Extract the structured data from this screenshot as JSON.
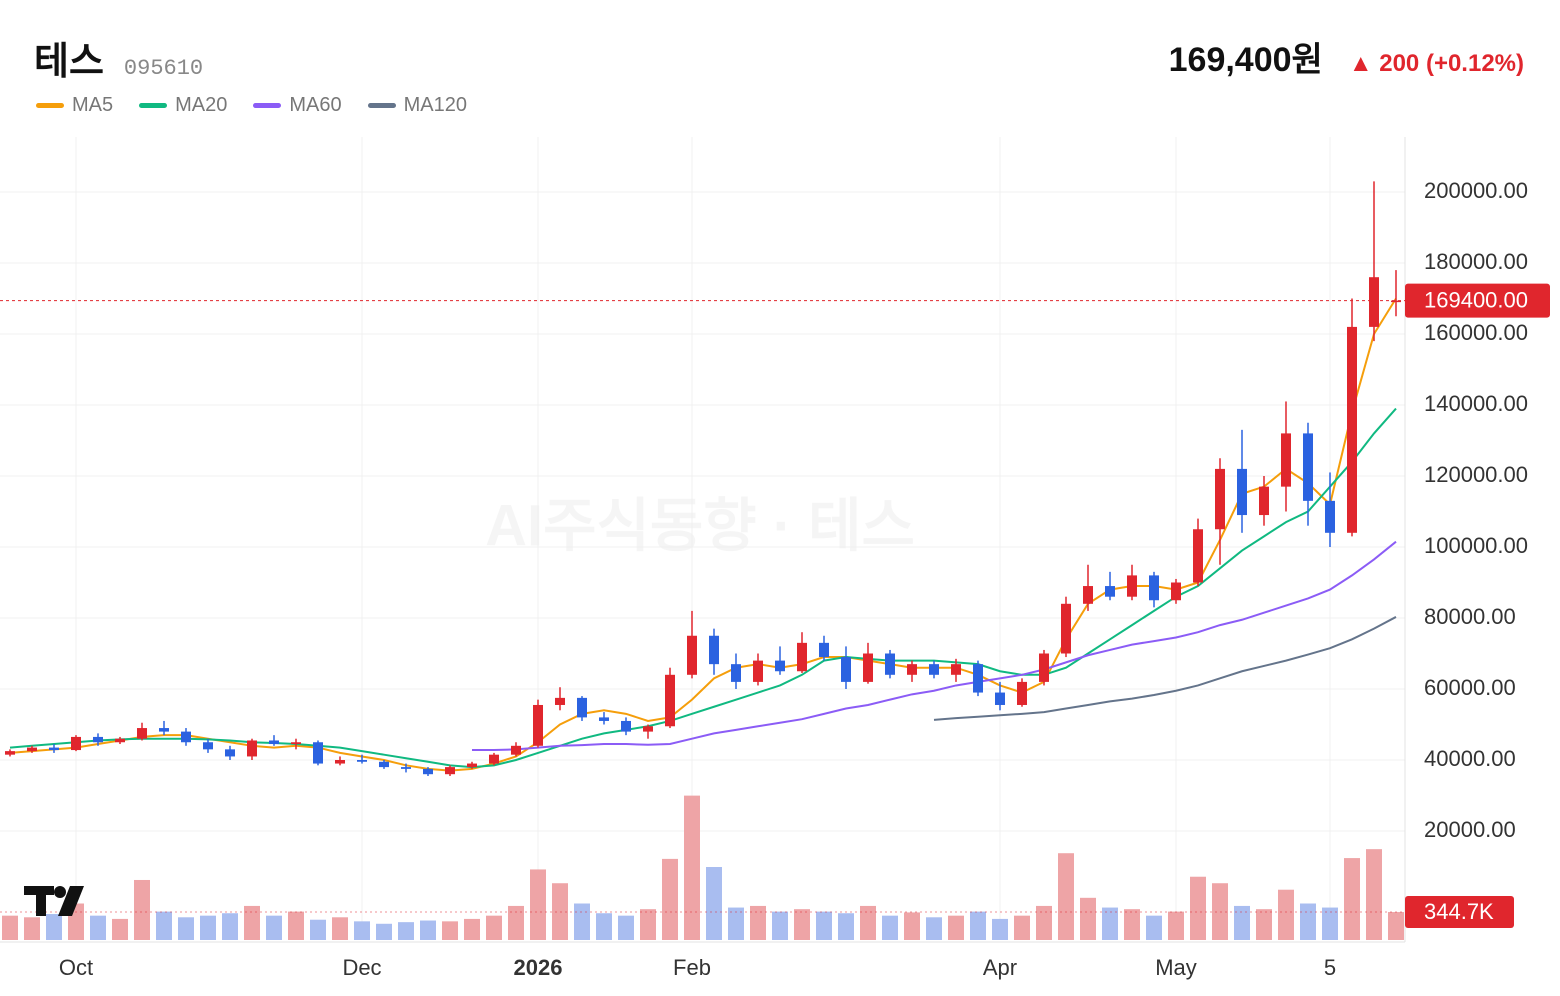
{
  "header": {
    "name": "테스",
    "code": "095610",
    "price": "169,400원",
    "change": "▲ 200 (+0.12%)"
  },
  "watermark": "AI주식동향 · 테스",
  "chart_data": {
    "type": "candlestick",
    "categories": [
      null,
      null,
      null,
      "Oct",
      null,
      null,
      null,
      null,
      null,
      null,
      null,
      null,
      null,
      null,
      null,
      null,
      "Dec",
      null,
      null,
      null,
      null,
      null,
      null,
      null,
      "2026",
      null,
      null,
      null,
      null,
      null,
      null,
      "Feb",
      null,
      null,
      null,
      null,
      null,
      null,
      null,
      null,
      null,
      null,
      null,
      null,
      null,
      "Apr",
      null,
      null,
      null,
      null,
      null,
      null,
      null,
      "May",
      null,
      null,
      null,
      null,
      null,
      null,
      "5",
      null,
      null,
      null
    ],
    "open": [
      41500,
      42500,
      43500,
      42800,
      46500,
      45000,
      46000,
      49000,
      48000,
      45000,
      43000,
      41000,
      45500,
      44500,
      45000,
      39000,
      40000,
      39500,
      38000,
      37500,
      36000,
      38000,
      39000,
      41500,
      44000,
      55500,
      57500,
      52000,
      51000,
      48000,
      49500,
      64000,
      75000,
      67000,
      62000,
      68000,
      65000,
      73000,
      69000,
      62000,
      70000,
      64000,
      67000,
      64000,
      67000,
      59000,
      55500,
      62000,
      70000,
      84000,
      89000,
      86000,
      92000,
      85000,
      90000,
      105000,
      122000,
      109000,
      117000,
      132000,
      113000,
      104000,
      162000,
      169200
    ],
    "high": [
      43000,
      44000,
      44500,
      47000,
      47500,
      46500,
      50500,
      51000,
      49000,
      46000,
      44000,
      46000,
      47000,
      46000,
      45500,
      41000,
      41500,
      40000,
      39000,
      38000,
      38500,
      39500,
      42000,
      45000,
      57000,
      60500,
      58000,
      53500,
      52000,
      50000,
      66000,
      82000,
      77000,
      70000,
      70000,
      72000,
      76000,
      75000,
      72000,
      73000,
      71000,
      68000,
      68000,
      68500,
      68000,
      62000,
      63000,
      71000,
      86000,
      95000,
      93000,
      95000,
      93000,
      91000,
      108000,
      125000,
      133000,
      120000,
      141000,
      135000,
      121000,
      170000,
      203000,
      178000
    ],
    "low": [
      41000,
      42000,
      42000,
      42500,
      44000,
      44500,
      45500,
      47000,
      44000,
      42000,
      40000,
      40000,
      44000,
      43000,
      38500,
      38500,
      39000,
      37500,
      36500,
      35500,
      35500,
      37500,
      38500,
      41000,
      43500,
      54000,
      51000,
      50000,
      47000,
      46000,
      49000,
      63000,
      64000,
      60000,
      61000,
      64000,
      64500,
      68000,
      60000,
      61500,
      63000,
      62000,
      63000,
      62000,
      58000,
      54000,
      55000,
      61000,
      69000,
      82000,
      85000,
      85000,
      83000,
      84000,
      89000,
      95000,
      104000,
      106000,
      110000,
      106000,
      100000,
      103000,
      158000,
      165000
    ],
    "close": [
      42500,
      43500,
      42800,
      46500,
      45000,
      46000,
      49000,
      48000,
      45000,
      43000,
      41000,
      45500,
      44500,
      45000,
      39000,
      40000,
      39500,
      38000,
      37500,
      36000,
      38000,
      39000,
      41500,
      44000,
      55500,
      57500,
      52000,
      51000,
      48000,
      49500,
      64000,
      75000,
      67000,
      62000,
      68000,
      65000,
      73000,
      69000,
      62000,
      70000,
      64000,
      67000,
      64000,
      67000,
      59000,
      55500,
      62000,
      70000,
      84000,
      89000,
      86000,
      92000,
      85000,
      90000,
      105000,
      122000,
      109000,
      117000,
      132000,
      113000,
      104000,
      162000,
      176000,
      169400
    ],
    "up_color": "#e0262d",
    "down_color": "#2b62e0",
    "series": [
      {
        "name": "MA5",
        "color": "#f59e0b",
        "values": [
          42000,
          42500,
          43000,
          43500,
          44500,
          45500,
          46500,
          47000,
          47000,
          46000,
          45000,
          44000,
          43500,
          44000,
          43500,
          42000,
          41000,
          40000,
          38500,
          37500,
          37000,
          37500,
          39000,
          41000,
          45000,
          50000,
          53000,
          54000,
          53000,
          51000,
          52000,
          57000,
          63000,
          66000,
          67000,
          66000,
          67000,
          69000,
          69000,
          68000,
          67000,
          66000,
          66000,
          66000,
          64000,
          61000,
          59000,
          62000,
          74000,
          84000,
          88000,
          89000,
          89000,
          88000,
          90000,
          102000,
          115000,
          117000,
          122000,
          118000,
          112000,
          138000,
          160000,
          170000
        ]
      },
      {
        "name": "MA20",
        "color": "#10b981",
        "values": [
          43500,
          44000,
          44500,
          45000,
          45500,
          45800,
          46000,
          46000,
          46000,
          45800,
          45500,
          45000,
          44800,
          44500,
          44000,
          43500,
          42500,
          41500,
          40500,
          39500,
          38500,
          38000,
          38500,
          40000,
          42000,
          44000,
          46000,
          47500,
          48500,
          49500,
          51000,
          53000,
          55000,
          57000,
          59000,
          61000,
          64000,
          68000,
          69000,
          68500,
          68000,
          68000,
          68000,
          67500,
          67000,
          65000,
          64000,
          64000,
          66000,
          70000,
          74000,
          78000,
          82000,
          86000,
          89000,
          94000,
          99000,
          103000,
          107000,
          110000,
          117000,
          124000,
          132000,
          139000
        ]
      },
      {
        "name": "MA60",
        "color": "#8b5cf6",
        "values": [
          null,
          null,
          null,
          null,
          null,
          null,
          null,
          null,
          null,
          null,
          null,
          null,
          null,
          null,
          null,
          null,
          null,
          null,
          null,
          null,
          null,
          42800,
          42800,
          43000,
          43500,
          44000,
          44200,
          44500,
          44500,
          44300,
          44500,
          46000,
          47500,
          48500,
          49500,
          50500,
          51500,
          53000,
          54500,
          55500,
          57000,
          58500,
          59500,
          61000,
          62000,
          63000,
          64000,
          65500,
          67500,
          69500,
          71000,
          72500,
          73500,
          74500,
          76000,
          78000,
          79500,
          81500,
          83500,
          85500,
          88000,
          92000,
          96500,
          101500
        ]
      },
      {
        "name": "MA120",
        "color": "#64748b",
        "values": [
          null,
          null,
          null,
          null,
          null,
          null,
          null,
          null,
          null,
          null,
          null,
          null,
          null,
          null,
          null,
          null,
          null,
          null,
          null,
          null,
          null,
          null,
          null,
          null,
          null,
          null,
          null,
          null,
          null,
          null,
          null,
          null,
          null,
          null,
          null,
          null,
          null,
          null,
          null,
          null,
          null,
          null,
          51300,
          51800,
          52200,
          52600,
          53000,
          53500,
          54500,
          55500,
          56500,
          57300,
          58300,
          59500,
          61000,
          63000,
          65000,
          66500,
          68000,
          69700,
          71500,
          74000,
          77000,
          80300
        ]
      }
    ],
    "volume": {
      "values": [
        300000,
        280000,
        320000,
        450000,
        300000,
        260000,
        740000,
        350000,
        280000,
        300000,
        330000,
        420000,
        300000,
        350000,
        250000,
        280000,
        230000,
        200000,
        220000,
        240000,
        230000,
        260000,
        300000,
        420000,
        870000,
        700000,
        450000,
        330000,
        300000,
        380000,
        1000000,
        1780000,
        900000,
        400000,
        420000,
        350000,
        380000,
        350000,
        330000,
        420000,
        300000,
        340000,
        280000,
        300000,
        350000,
        260000,
        300000,
        420000,
        1070000,
        520000,
        400000,
        380000,
        300000,
        350000,
        780000,
        700000,
        420000,
        380000,
        620000,
        450000,
        400000,
        1010000,
        1120000,
        344700
      ],
      "last_label": "344.7K",
      "ylim": [
        0,
        1800000
      ],
      "up_color": "#eea4a6",
      "down_color": "#a9bdf0"
    },
    "last_price": {
      "value": 169400,
      "label": "169400.00"
    },
    "ylim": [
      -10704,
      215493
    ],
    "yticks": [
      {
        "value": 20000,
        "label": "20000.00"
      },
      {
        "value": 40000,
        "label": "40000.00"
      },
      {
        "value": 60000,
        "label": "60000.00"
      },
      {
        "value": 80000,
        "label": "80000.00"
      },
      {
        "value": 100000,
        "label": "100000.00"
      },
      {
        "value": 120000,
        "label": "120000.00"
      },
      {
        "value": 140000,
        "label": "140000.00"
      },
      {
        "value": 160000,
        "label": "160000.00"
      },
      {
        "value": 180000,
        "label": "180000.00"
      },
      {
        "value": 200000,
        "label": "200000.00"
      }
    ],
    "grid": true
  }
}
